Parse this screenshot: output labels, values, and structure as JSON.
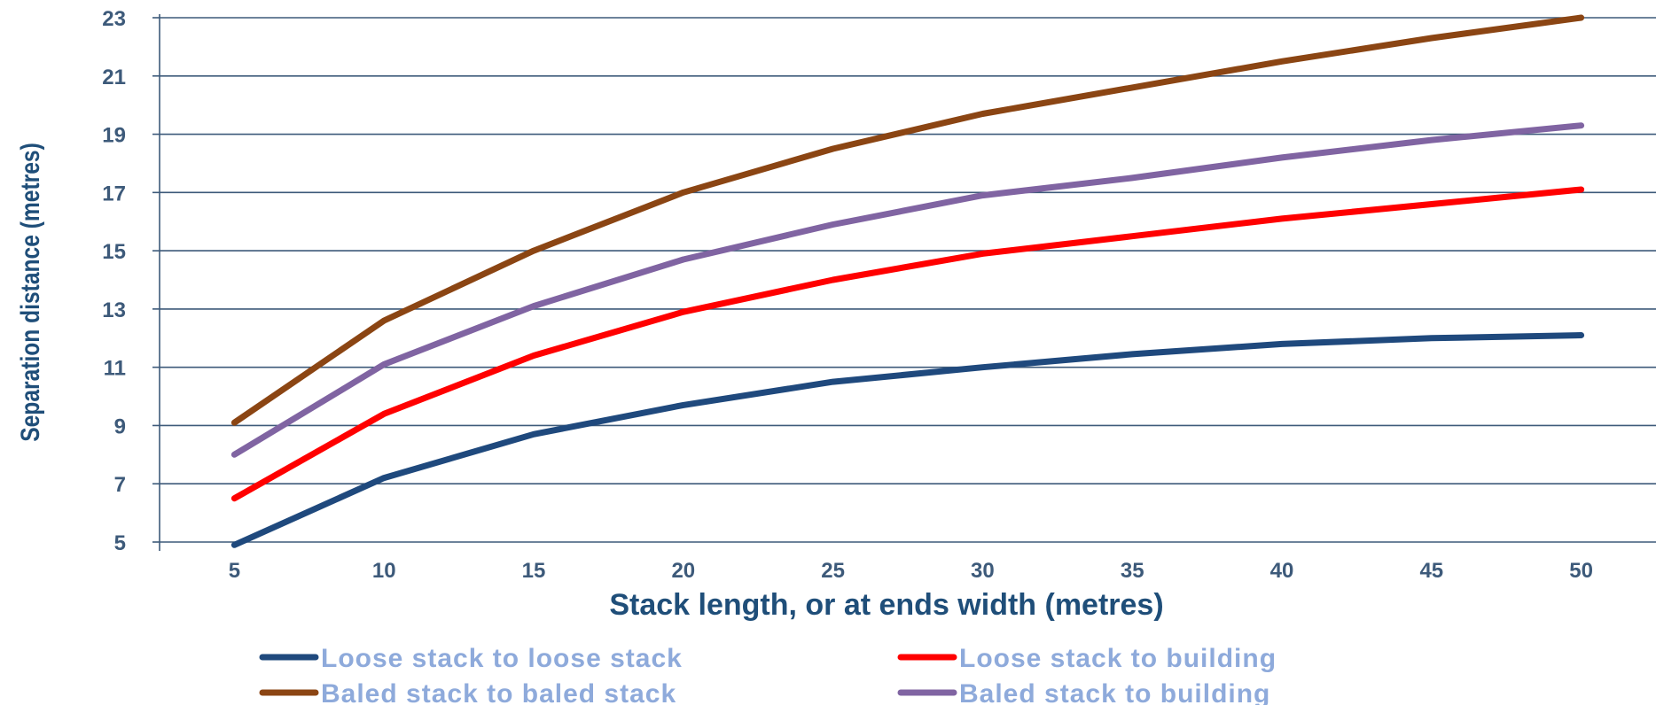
{
  "chart_data": {
    "type": "line",
    "title": "",
    "xlabel": "Stack length, or at ends width (metres)",
    "ylabel": "Separation distance (metres)",
    "x": [
      5,
      10,
      15,
      20,
      25,
      30,
      35,
      40,
      45,
      50
    ],
    "xlim": [
      2.5,
      52.5
    ],
    "ylim": [
      5,
      23
    ],
    "yticks": [
      5,
      7,
      9,
      11,
      13,
      15,
      17,
      19,
      21,
      23
    ],
    "grid": "horizontal",
    "legend_position": "bottom",
    "series": [
      {
        "name": "Loose stack to loose stack",
        "color": "#1f497d",
        "values": [
          4.9,
          7.2,
          8.7,
          9.7,
          10.5,
          11.0,
          11.45,
          11.8,
          12.0,
          12.1
        ]
      },
      {
        "name": "Loose stack to building",
        "color": "#ff0000",
        "values": [
          6.5,
          9.4,
          11.4,
          12.9,
          14.0,
          14.9,
          15.5,
          16.1,
          16.6,
          17.1
        ]
      },
      {
        "name": "Baled stack to baled stack",
        "color": "#8b4513",
        "values": [
          9.1,
          12.6,
          15.0,
          17.0,
          18.5,
          19.7,
          20.6,
          21.5,
          22.3,
          23.0
        ]
      },
      {
        "name": "Baled stack to building",
        "color": "#8064a2",
        "values": [
          8.0,
          11.1,
          13.1,
          14.7,
          15.9,
          16.9,
          17.5,
          18.2,
          18.8,
          19.3
        ]
      }
    ]
  },
  "legend": {
    "order": [
      0,
      1,
      2,
      3
    ]
  }
}
